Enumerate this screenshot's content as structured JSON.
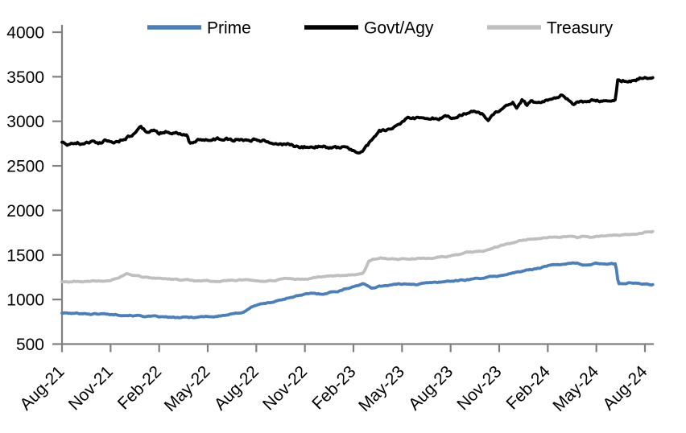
{
  "chart_data": {
    "type": "line",
    "title": "",
    "xlabel": "",
    "ylabel": "",
    "x_unit": "months since Aug-2021",
    "ylim": [
      500,
      4000
    ],
    "y_ticks": [
      500,
      1000,
      1500,
      2000,
      2500,
      3000,
      3500,
      4000
    ],
    "x_tick_labels": [
      "Aug-21",
      "Nov-21",
      "Feb-22",
      "May-22",
      "Aug-22",
      "Nov-22",
      "Feb-23",
      "May-23",
      "Aug-23",
      "Nov-23",
      "Feb-24",
      "May-24",
      "Aug-24"
    ],
    "x_tick_indices": [
      0,
      3,
      6,
      9,
      12,
      15,
      18,
      21,
      24,
      27,
      30,
      33,
      36
    ],
    "x_data_max": 36.5,
    "grid": false,
    "legend_position": "top",
    "axis_color": "#808080",
    "noise_amplitude": {
      "Prime": 10,
      "Govt/Agy": 26,
      "Treasury": 10
    },
    "series": [
      {
        "name": "Prime",
        "color": "#4a7ebc",
        "points": [
          [
            0,
            850
          ],
          [
            0.6,
            843
          ],
          [
            1.2,
            846
          ],
          [
            1.8,
            838
          ],
          [
            2.4,
            840
          ],
          [
            3,
            834
          ],
          [
            3.6,
            830
          ],
          [
            4.2,
            824
          ],
          [
            4.8,
            818
          ],
          [
            5.4,
            810
          ],
          [
            6,
            805
          ],
          [
            6.6,
            799
          ],
          [
            7.2,
            796
          ],
          [
            7.8,
            799
          ],
          [
            8.4,
            804
          ],
          [
            9,
            812
          ],
          [
            9.4,
            807
          ],
          [
            10,
            822
          ],
          [
            10.6,
            836
          ],
          [
            11.2,
            862
          ],
          [
            11.9,
            935
          ],
          [
            12.4,
            952
          ],
          [
            13,
            970
          ],
          [
            13.5,
            995
          ],
          [
            14,
            1020
          ],
          [
            14.5,
            1040
          ],
          [
            15,
            1055
          ],
          [
            15.5,
            1068
          ],
          [
            16,
            1062
          ],
          [
            16.5,
            1080
          ],
          [
            17,
            1092
          ],
          [
            17.5,
            1118
          ],
          [
            18,
            1148
          ],
          [
            18.6,
            1176
          ],
          [
            19.1,
            1130
          ],
          [
            19.5,
            1145
          ],
          [
            20,
            1160
          ],
          [
            20.5,
            1168
          ],
          [
            21,
            1172
          ],
          [
            21.5,
            1178
          ],
          [
            22,
            1172
          ],
          [
            22.6,
            1185
          ],
          [
            23.2,
            1195
          ],
          [
            23.8,
            1205
          ],
          [
            24.4,
            1212
          ],
          [
            25,
            1222
          ],
          [
            25.6,
            1235
          ],
          [
            26.2,
            1248
          ],
          [
            26.8,
            1258
          ],
          [
            27.4,
            1282
          ],
          [
            28,
            1302
          ],
          [
            28.6,
            1322
          ],
          [
            29.2,
            1345
          ],
          [
            29.8,
            1372
          ],
          [
            30.4,
            1388
          ],
          [
            31,
            1400
          ],
          [
            31.6,
            1408
          ],
          [
            32,
            1398
          ],
          [
            32.3,
            1385
          ],
          [
            32.7,
            1398
          ],
          [
            33.1,
            1405
          ],
          [
            33.5,
            1400
          ],
          [
            34,
            1407
          ],
          [
            34.2,
            1405
          ],
          [
            34.35,
            1182
          ],
          [
            34.8,
            1183
          ],
          [
            35.2,
            1188
          ],
          [
            35.6,
            1178
          ],
          [
            36,
            1172
          ],
          [
            36.5,
            1170
          ]
        ]
      },
      {
        "name": "Govt/Agy",
        "color": "#000000",
        "points": [
          [
            0,
            2770
          ],
          [
            0.4,
            2752
          ],
          [
            0.9,
            2768
          ],
          [
            1.3,
            2748
          ],
          [
            1.8,
            2772
          ],
          [
            2.3,
            2762
          ],
          [
            2.8,
            2788
          ],
          [
            3.3,
            2772
          ],
          [
            3.8,
            2800
          ],
          [
            4.3,
            2845
          ],
          [
            4.86,
            2928
          ],
          [
            5.2,
            2890
          ],
          [
            5.6,
            2912
          ],
          [
            6,
            2868
          ],
          [
            6.4,
            2888
          ],
          [
            6.8,
            2845
          ],
          [
            7.1,
            2868
          ],
          [
            7.5,
            2855
          ],
          [
            7.73,
            2845
          ],
          [
            7.85,
            2758
          ],
          [
            8.1,
            2768
          ],
          [
            8.5,
            2795
          ],
          [
            9,
            2810
          ],
          [
            9.5,
            2798
          ],
          [
            10,
            2812
          ],
          [
            10.5,
            2795
          ],
          [
            11,
            2805
          ],
          [
            11.5,
            2796
          ],
          [
            12,
            2800
          ],
          [
            12.5,
            2786
          ],
          [
            13,
            2770
          ],
          [
            13.5,
            2752
          ],
          [
            14,
            2745
          ],
          [
            14.5,
            2718
          ],
          [
            15,
            2712
          ],
          [
            15.5,
            2728
          ],
          [
            16,
            2722
          ],
          [
            16.5,
            2708
          ],
          [
            17,
            2702
          ],
          [
            17.4,
            2712
          ],
          [
            17.8,
            2678
          ],
          [
            18.35,
            2655
          ],
          [
            18.7,
            2700
          ],
          [
            19,
            2760
          ],
          [
            19.3,
            2820
          ],
          [
            19.6,
            2885
          ],
          [
            20,
            2905
          ],
          [
            20.3,
            2930
          ],
          [
            20.7,
            2960
          ],
          [
            21,
            3000
          ],
          [
            21.3,
            3030
          ],
          [
            21.6,
            3048
          ],
          [
            22,
            3032
          ],
          [
            22.4,
            3050
          ],
          [
            22.8,
            3028
          ],
          [
            23.2,
            3042
          ],
          [
            23.6,
            3050
          ],
          [
            24,
            3045
          ],
          [
            24.4,
            3062
          ],
          [
            24.8,
            3078
          ],
          [
            25.2,
            3088
          ],
          [
            25.6,
            3108
          ],
          [
            26,
            3080
          ],
          [
            26.35,
            3012
          ],
          [
            26.7,
            3080
          ],
          [
            27,
            3120
          ],
          [
            27.5,
            3160
          ],
          [
            27.85,
            3220
          ],
          [
            28.1,
            3155
          ],
          [
            28.4,
            3235
          ],
          [
            28.7,
            3180
          ],
          [
            29,
            3222
          ],
          [
            29.4,
            3205
          ],
          [
            29.8,
            3228
          ],
          [
            30.2,
            3240
          ],
          [
            30.8,
            3285
          ],
          [
            31.3,
            3240
          ],
          [
            31.6,
            3198
          ],
          [
            32,
            3228
          ],
          [
            32.4,
            3220
          ],
          [
            32.8,
            3235
          ],
          [
            33.2,
            3226
          ],
          [
            33.6,
            3222
          ],
          [
            34,
            3220
          ],
          [
            34.18,
            3222
          ],
          [
            34.32,
            3445
          ],
          [
            34.7,
            3458
          ],
          [
            35,
            3448
          ],
          [
            35.4,
            3468
          ],
          [
            35.8,
            3488
          ],
          [
            36.2,
            3498
          ],
          [
            36.5,
            3512
          ]
        ]
      },
      {
        "name": "Treasury",
        "color": "#bfbfbf",
        "points": [
          [
            0,
            1200
          ],
          [
            0.5,
            1196
          ],
          [
            1,
            1204
          ],
          [
            1.5,
            1199
          ],
          [
            2,
            1208
          ],
          [
            2.5,
            1212
          ],
          [
            3,
            1222
          ],
          [
            3.5,
            1248
          ],
          [
            4,
            1290
          ],
          [
            4.4,
            1275
          ],
          [
            4.9,
            1258
          ],
          [
            5.4,
            1245
          ],
          [
            6,
            1235
          ],
          [
            6.5,
            1228
          ],
          [
            7,
            1222
          ],
          [
            7.5,
            1218
          ],
          [
            8,
            1215
          ],
          [
            8.5,
            1205
          ],
          [
            9,
            1212
          ],
          [
            9.5,
            1202
          ],
          [
            10,
            1210
          ],
          [
            10.5,
            1218
          ],
          [
            11,
            1222
          ],
          [
            11.5,
            1216
          ],
          [
            12,
            1212
          ],
          [
            12.5,
            1206
          ],
          [
            13,
            1218
          ],
          [
            13.5,
            1223
          ],
          [
            14,
            1230
          ],
          [
            14.5,
            1225
          ],
          [
            15,
            1235
          ],
          [
            15.5,
            1242
          ],
          [
            16,
            1250
          ],
          [
            16.5,
            1258
          ],
          [
            17,
            1262
          ],
          [
            17.5,
            1275
          ],
          [
            18,
            1282
          ],
          [
            18.5,
            1290
          ],
          [
            18.65,
            1310
          ],
          [
            18.95,
            1440
          ],
          [
            19.2,
            1452
          ],
          [
            19.6,
            1460
          ],
          [
            20,
            1465
          ],
          [
            20.4,
            1455
          ],
          [
            20.8,
            1448
          ],
          [
            21.2,
            1452
          ],
          [
            21.6,
            1462
          ],
          [
            22,
            1465
          ],
          [
            22.4,
            1458
          ],
          [
            22.8,
            1470
          ],
          [
            23.2,
            1478
          ],
          [
            23.6,
            1482
          ],
          [
            24,
            1490
          ],
          [
            24.5,
            1505
          ],
          [
            25,
            1525
          ],
          [
            25.5,
            1535
          ],
          [
            26,
            1545
          ],
          [
            26.5,
            1570
          ],
          [
            27,
            1598
          ],
          [
            27.5,
            1628
          ],
          [
            28,
            1648
          ],
          [
            28.5,
            1668
          ],
          [
            29,
            1680
          ],
          [
            29.5,
            1690
          ],
          [
            30,
            1698
          ],
          [
            30.5,
            1702
          ],
          [
            31,
            1708
          ],
          [
            31.5,
            1712
          ],
          [
            31.9,
            1700
          ],
          [
            32.2,
            1715
          ],
          [
            32.6,
            1698
          ],
          [
            33,
            1710
          ],
          [
            33.5,
            1716
          ],
          [
            34,
            1720
          ],
          [
            34.5,
            1722
          ],
          [
            35,
            1728
          ],
          [
            35.5,
            1740
          ],
          [
            36,
            1752
          ],
          [
            36.5,
            1762
          ]
        ]
      }
    ],
    "legend": {
      "items": [
        "Prime",
        "Govt/Agy",
        "Treasury"
      ],
      "sample_x": [
        183,
        378,
        605
      ],
      "sample_width": 67,
      "y": 34
    }
  }
}
